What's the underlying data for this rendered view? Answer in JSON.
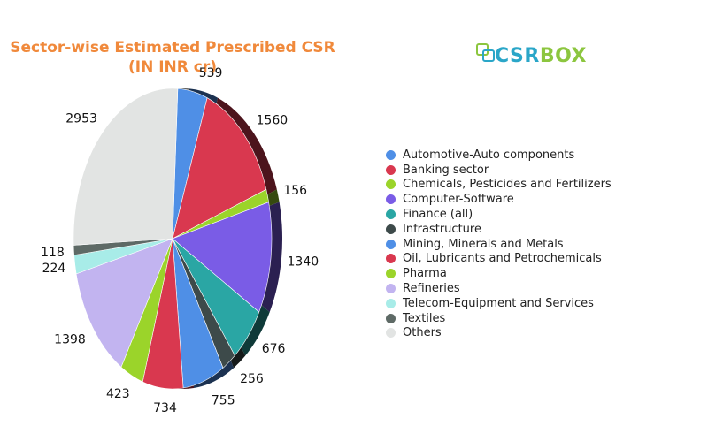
{
  "title": {
    "line1": "Sector-wise Estimated Prescribed CSR",
    "line2": "(IN INR cr)"
  },
  "logo": {
    "text_main": "CSR",
    "text_accent": "BOX"
  },
  "chart_data": {
    "type": "pie",
    "title": "Sector-wise Estimated Prescribed CSR (IN INR cr)",
    "categories": [
      "Automotive-Auto components",
      "Banking sector",
      "Chemicals, Pesticides and Fertilizers",
      "Computer-Software",
      "Finance (all)",
      "Infrastructure",
      "Mining, Minerals and Metals",
      "Oil, Lubricants and Petrochemicals",
      "Pharma",
      "Refineries",
      "Telecom-Equipment and Services",
      "Textiles",
      "Others"
    ],
    "values": [
      539,
      1560,
      156,
      1340,
      676,
      256,
      755,
      734,
      423,
      1398,
      224,
      118,
      2953
    ],
    "colors": [
      "#4f8fe6",
      "#d9384f",
      "#9bd42a",
      "#7a5ce6",
      "#2aa6a4",
      "#3d4a4a",
      "#4f8fe6",
      "#d9384f",
      "#9bd42a",
      "#c2b4f0",
      "#a8ece8",
      "#5e6a66",
      "#e2e4e3"
    ],
    "legend_position": "right",
    "data_labels": true
  }
}
